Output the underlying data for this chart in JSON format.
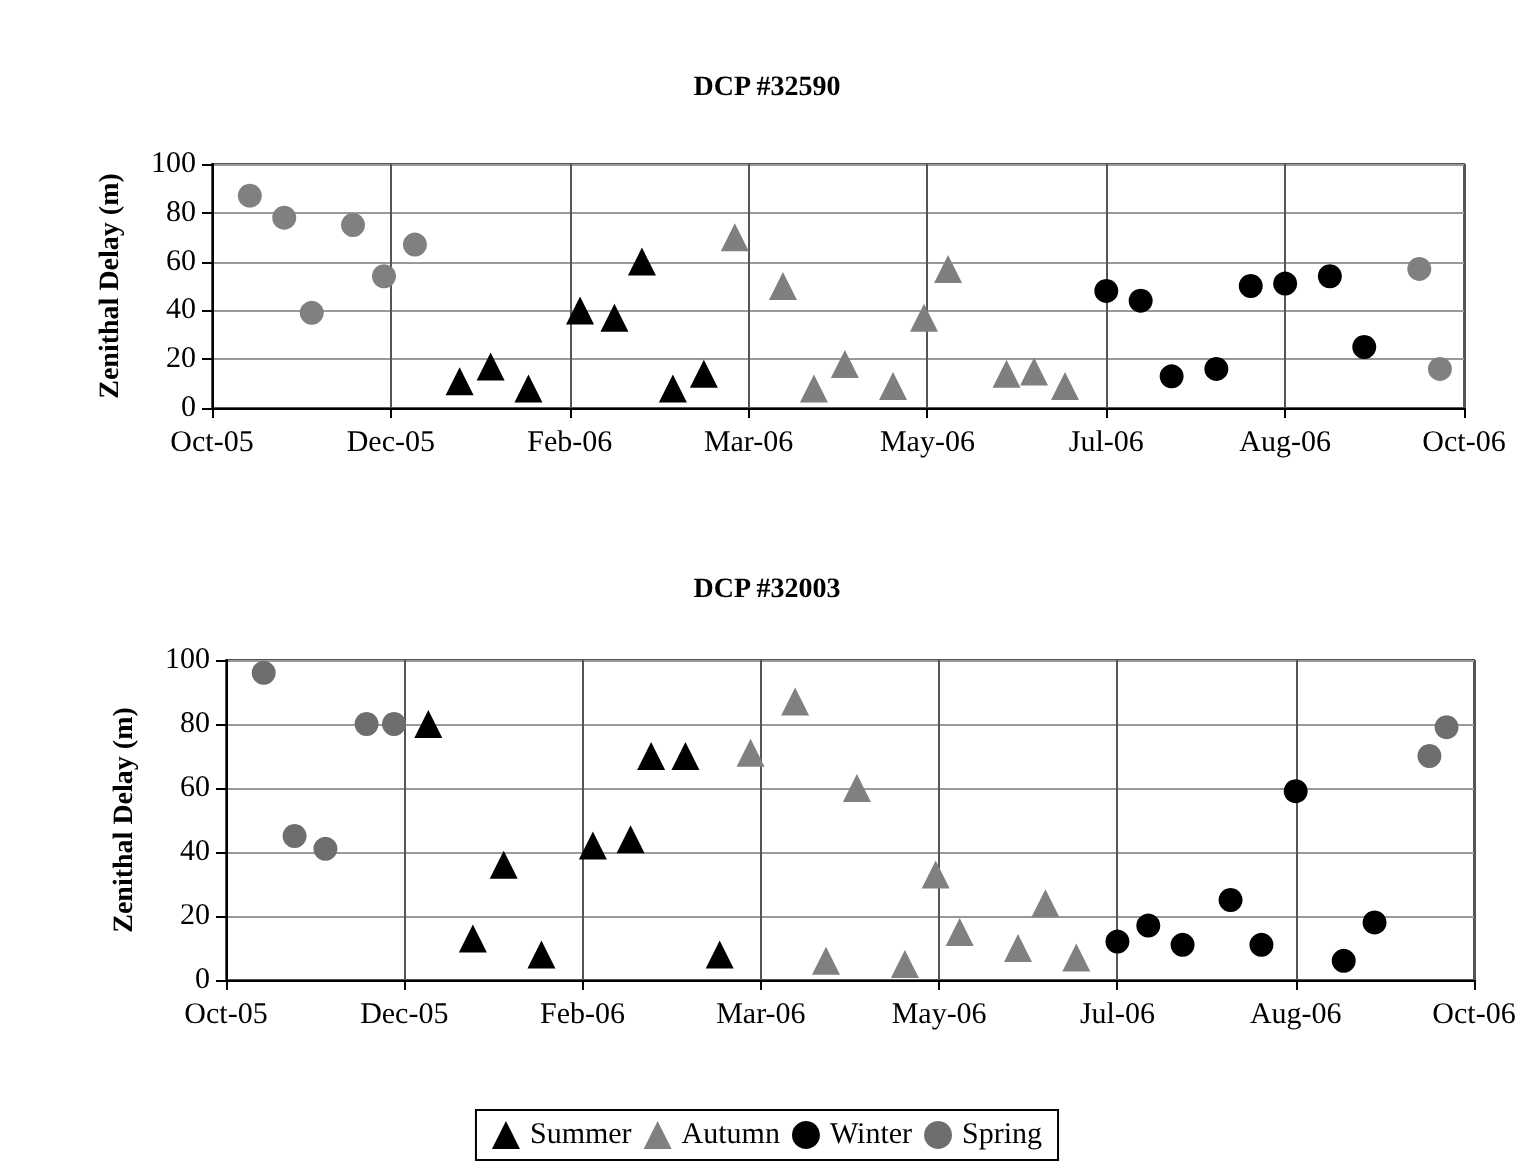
{
  "chart_data": [
    {
      "type": "scatter",
      "title": "DCP #32590",
      "ylabel": "Zenithal Delay (m)",
      "xlim": [
        "2005-10-20",
        "2006-10-19"
      ],
      "xticks": [
        {
          "value": "2005-10-20",
          "label": "Oct-05"
        },
        {
          "value": "2005-12-11",
          "label": "Dec-05"
        },
        {
          "value": "2006-02-01",
          "label": "Feb-06"
        },
        {
          "value": "2006-03-25",
          "label": "Mar-06"
        },
        {
          "value": "2006-05-16",
          "label": "May-06"
        },
        {
          "value": "2006-07-07",
          "label": "Jul-06"
        },
        {
          "value": "2006-08-28",
          "label": "Aug-06"
        },
        {
          "value": "2006-10-19",
          "label": "Oct-06"
        }
      ],
      "ylim": [
        0,
        100
      ],
      "yticks": [
        0,
        20,
        40,
        60,
        80,
        100
      ],
      "grid": true,
      "legend": false,
      "series": [
        {
          "color": "#000000",
          "marker": "triangle",
          "x": [
            "2005-12-31",
            "2006-01-09",
            "2006-01-20",
            "2006-02-04",
            "2006-02-14",
            "2006-02-22",
            "2006-03-03",
            "2006-03-12"
          ],
          "values": [
            11,
            17,
            8,
            40,
            37,
            60,
            8,
            14
          ]
        },
        {
          "color": "#7f7f7f",
          "marker": "triangle",
          "x": [
            "2006-03-21",
            "2006-04-04",
            "2006-04-13",
            "2006-04-22",
            "2006-05-06",
            "2006-05-15",
            "2006-05-22",
            "2006-06-08",
            "2006-06-16",
            "2006-06-25"
          ],
          "values": [
            70,
            50,
            8,
            18,
            9,
            37,
            57,
            14,
            15,
            9
          ]
        },
        {
          "color": "#000000",
          "marker": "circle",
          "x": [
            "2006-07-07",
            "2006-07-17",
            "2006-07-26",
            "2006-08-08",
            "2006-08-18",
            "2006-08-28",
            "2006-09-10",
            "2006-09-20"
          ],
          "values": [
            48,
            44,
            13,
            16,
            50,
            51,
            54,
            25
          ]
        },
        {
          "color": "#808080",
          "marker": "circle",
          "x": [
            "2005-10-31",
            "2005-11-10",
            "2005-11-18",
            "2005-11-30",
            "2005-12-09",
            "2005-12-18",
            "2006-10-06",
            "2006-10-12"
          ],
          "values": [
            87,
            78,
            39,
            75,
            54,
            67,
            57,
            16
          ]
        }
      ]
    },
    {
      "type": "scatter",
      "title": "DCP #32003",
      "ylabel": "Zenithal Delay (m)",
      "xlim": [
        "2005-10-20",
        "2006-10-19"
      ],
      "xticks": [
        {
          "value": "2005-10-20",
          "label": "Oct-05"
        },
        {
          "value": "2005-12-11",
          "label": "Dec-05"
        },
        {
          "value": "2006-02-01",
          "label": "Feb-06"
        },
        {
          "value": "2006-03-25",
          "label": "Mar-06"
        },
        {
          "value": "2006-05-16",
          "label": "May-06"
        },
        {
          "value": "2006-07-07",
          "label": "Jul-06"
        },
        {
          "value": "2006-08-28",
          "label": "Aug-06"
        },
        {
          "value": "2006-10-19",
          "label": "Oct-06"
        }
      ],
      "ylim": [
        0,
        100
      ],
      "yticks": [
        0,
        20,
        40,
        60,
        80,
        100
      ],
      "grid": true,
      "legend": "bottom",
      "series": [
        {
          "name": "Summer",
          "color": "#000000",
          "marker": "triangle",
          "x": [
            "2005-12-18",
            "2005-12-31",
            "2006-01-09",
            "2006-01-20",
            "2006-02-04",
            "2006-02-15",
            "2006-02-21",
            "2006-03-03",
            "2006-03-13"
          ],
          "values": [
            80,
            13,
            36,
            8,
            42,
            44,
            70,
            70,
            8
          ]
        },
        {
          "name": "Autumn",
          "color": "#808080",
          "marker": "triangle",
          "x": [
            "2006-03-22",
            "2006-04-04",
            "2006-04-13",
            "2006-04-22",
            "2006-05-06",
            "2006-05-15",
            "2006-05-22",
            "2006-06-08",
            "2006-06-16",
            "2006-06-25"
          ],
          "values": [
            71,
            87,
            6,
            60,
            5,
            33,
            15,
            10,
            24,
            7
          ]
        },
        {
          "name": "Winter",
          "color": "#000000",
          "marker": "circle",
          "x": [
            "2006-07-07",
            "2006-07-16",
            "2006-07-26",
            "2006-08-09",
            "2006-08-18",
            "2006-08-28",
            "2006-09-11",
            "2006-09-20"
          ],
          "values": [
            12,
            17,
            11,
            25,
            11,
            59,
            6,
            18
          ]
        },
        {
          "name": "Spring",
          "color": "#6e6e6e",
          "marker": "circle",
          "x": [
            "2005-10-31",
            "2005-11-09",
            "2005-11-18",
            "2005-11-30",
            "2005-12-08",
            "2006-10-06",
            "2006-10-11"
          ],
          "values": [
            96,
            45,
            41,
            80,
            80,
            70,
            79
          ]
        }
      ]
    }
  ]
}
